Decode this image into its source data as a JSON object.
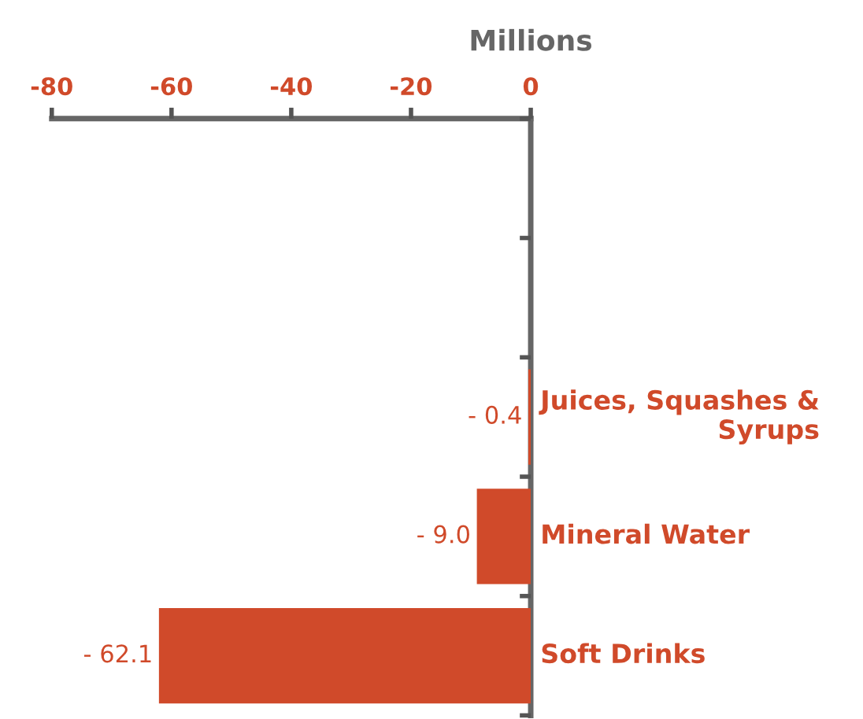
{
  "chart_data": {
    "type": "bar",
    "orientation": "horizontal",
    "xlabel": "Millions",
    "categories": [
      null,
      null,
      "Juices, Squashes &\nSyrups",
      "Mineral Water",
      "Soft Drinks"
    ],
    "values": [
      null,
      null,
      -0.4,
      -9.0,
      -62.1
    ],
    "value_labels": [
      null,
      null,
      "- 0.4",
      "- 9.0",
      "- 62.1"
    ],
    "color": "#d04a2a",
    "xlim": [
      -80,
      0
    ],
    "xticks": [
      -80,
      -60,
      -40,
      -20,
      0
    ],
    "grid": false,
    "legend": false
  }
}
